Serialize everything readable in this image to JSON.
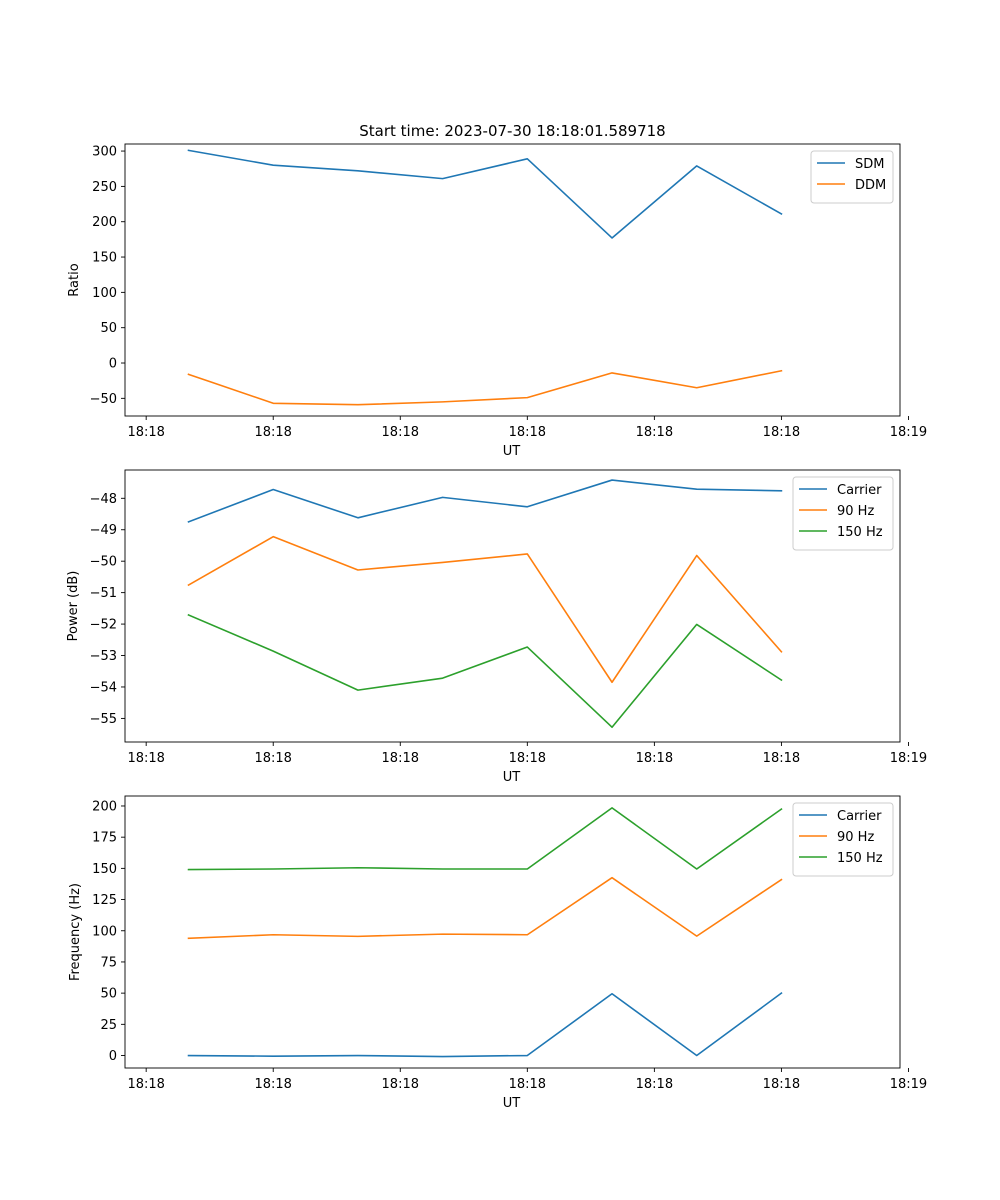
{
  "chart_data": [
    {
      "type": "line",
      "title": "Start time: 2023-07-30 18:18:01.589718",
      "xlabel": "UT",
      "ylabel": "Ratio",
      "x": [
        1,
        2,
        3,
        4,
        5,
        6,
        7,
        8
      ],
      "xlim": [
        0.25,
        9.4
      ],
      "xticks": [
        0.5,
        2,
        3.5,
        5,
        6.5,
        8,
        9.5
      ],
      "xtick_labels": [
        "18:18",
        "18:18",
        "18:18",
        "18:18",
        "18:18",
        "18:18",
        "18:19"
      ],
      "ylim": [
        -75,
        310
      ],
      "yticks": [
        -50,
        0,
        50,
        100,
        150,
        200,
        250,
        300
      ],
      "ytick_labels": [
        "−50",
        "0",
        "50",
        "100",
        "150",
        "200",
        "250",
        "300"
      ],
      "legend_position": "top-right",
      "series": [
        {
          "name": "SDM",
          "color": "#1f77b4",
          "values": [
            301,
            280,
            272,
            261,
            289,
            177,
            279,
            211
          ]
        },
        {
          "name": "DDM",
          "color": "#ff7f0e",
          "values": [
            -16,
            -57,
            -59,
            -55,
            -49,
            -14,
            -35,
            -11
          ]
        }
      ]
    },
    {
      "type": "line",
      "title": "",
      "xlabel": "UT",
      "ylabel": "Power (dB)",
      "x": [
        1,
        2,
        3,
        4,
        5,
        6,
        7,
        8
      ],
      "xlim": [
        0.25,
        9.4
      ],
      "xticks": [
        0.5,
        2,
        3.5,
        5,
        6.5,
        8,
        9.5
      ],
      "xtick_labels": [
        "18:18",
        "18:18",
        "18:18",
        "18:18",
        "18:18",
        "18:18",
        "18:19"
      ],
      "ylim": [
        -55.75,
        -47.1
      ],
      "yticks": [
        -55,
        -54,
        -53,
        -52,
        -51,
        -50,
        -49,
        -48
      ],
      "ytick_labels": [
        "−55",
        "−54",
        "−53",
        "−52",
        "−51",
        "−50",
        "−49",
        "−48"
      ],
      "legend_position": "top-right",
      "series": [
        {
          "name": "Carrier",
          "color": "#1f77b4",
          "values": [
            -48.75,
            -47.72,
            -48.62,
            -47.97,
            -48.27,
            -47.42,
            -47.71,
            -47.76
          ]
        },
        {
          "name": "90 Hz",
          "color": "#ff7f0e",
          "values": [
            -50.76,
            -49.22,
            -50.28,
            -50.04,
            -49.77,
            -53.85,
            -49.82,
            -52.88
          ]
        },
        {
          "name": "150 Hz",
          "color": "#2ca02c",
          "values": [
            -51.71,
            -52.86,
            -54.1,
            -53.72,
            -52.73,
            -55.28,
            -52.01,
            -53.78
          ]
        }
      ]
    },
    {
      "type": "line",
      "title": "",
      "xlabel": "UT",
      "ylabel": "Frequency (Hz)",
      "x": [
        1,
        2,
        3,
        4,
        5,
        6,
        7,
        8
      ],
      "xlim": [
        0.25,
        9.4
      ],
      "xticks": [
        0.5,
        2,
        3.5,
        5,
        6.5,
        8,
        9.5
      ],
      "xtick_labels": [
        "18:18",
        "18:18",
        "18:18",
        "18:18",
        "18:18",
        "18:18",
        "18:19"
      ],
      "ylim": [
        -10,
        208
      ],
      "yticks": [
        0,
        25,
        50,
        75,
        100,
        125,
        150,
        175,
        200
      ],
      "ytick_labels": [
        "0",
        "25",
        "50",
        "75",
        "100",
        "125",
        "150",
        "175",
        "200"
      ],
      "legend_position": "top-right",
      "series": [
        {
          "name": "Carrier",
          "color": "#1f77b4",
          "values": [
            0,
            -0.5,
            0,
            -0.8,
            0,
            49.5,
            0,
            50
          ]
        },
        {
          "name": "90 Hz",
          "color": "#ff7f0e",
          "values": [
            94,
            96.8,
            95.5,
            97.3,
            96.8,
            142.5,
            95.7,
            141
          ]
        },
        {
          "name": "150 Hz",
          "color": "#2ca02c",
          "values": [
            149,
            149.5,
            150.5,
            149.5,
            149.5,
            198.5,
            149.5,
            197.5
          ]
        }
      ]
    }
  ]
}
